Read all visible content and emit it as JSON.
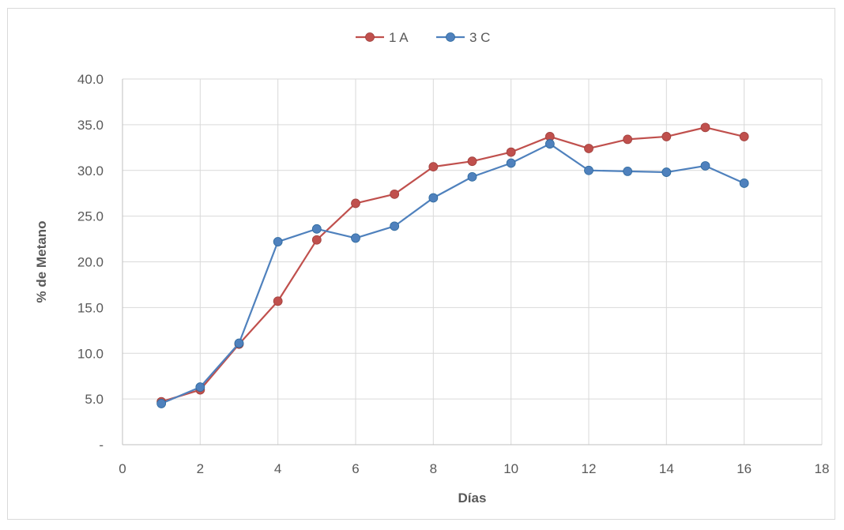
{
  "chart_data": {
    "type": "line",
    "xlabel": "Días",
    "ylabel": "% de Metano",
    "xlim": [
      0,
      18
    ],
    "ylim": [
      0,
      40
    ],
    "xticks": [
      0,
      2,
      4,
      6,
      8,
      10,
      12,
      14,
      16,
      18
    ],
    "xtick_labels": [
      "0",
      "2",
      "4",
      "6",
      "8",
      "10",
      "12",
      "14",
      "16",
      "18"
    ],
    "yticks": [
      0,
      5,
      10,
      15,
      20,
      25,
      30,
      35,
      40
    ],
    "ytick_labels": [
      "-",
      "5.0",
      "10.0",
      "15.0",
      "20.0",
      "25.0",
      "30.0",
      "35.0",
      "40.0"
    ],
    "grid": true,
    "legend_position": "top-center",
    "x": [
      1,
      2,
      3,
      4,
      5,
      6,
      7,
      8,
      9,
      10,
      11,
      12,
      13,
      14,
      15,
      16
    ],
    "series": [
      {
        "name": "1 A",
        "color": "#c0504d",
        "values": [
          4.7,
          6.0,
          11.0,
          15.7,
          22.4,
          26.4,
          27.4,
          30.4,
          31.0,
          32.0,
          33.7,
          32.4,
          33.4,
          33.7,
          34.7,
          33.7
        ]
      },
      {
        "name": "3 C",
        "color": "#4f81bd",
        "values": [
          4.5,
          6.3,
          11.1,
          22.2,
          23.6,
          22.6,
          23.9,
          27.0,
          29.3,
          30.8,
          32.9,
          30.0,
          29.9,
          29.8,
          30.5,
          28.6
        ]
      }
    ]
  }
}
